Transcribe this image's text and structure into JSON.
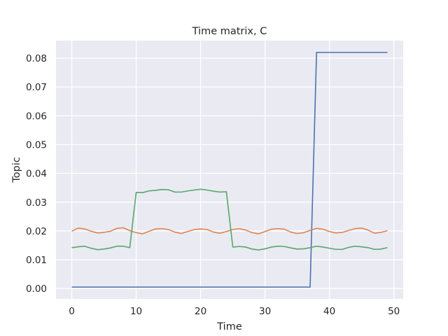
{
  "chart_data": {
    "type": "line",
    "title": "Time matrix, C",
    "xlabel": "Time",
    "ylabel": "Topic",
    "xlim": [
      -2.45,
      51.45
    ],
    "ylim": [
      -0.0036,
      0.0861
    ],
    "xticks": [
      0,
      10,
      20,
      30,
      40,
      50
    ],
    "xtick_labels": [
      "0",
      "10",
      "20",
      "30",
      "40",
      "50"
    ],
    "yticks": [
      0.0,
      0.01,
      0.02,
      0.03,
      0.04,
      0.05,
      0.06,
      0.07,
      0.08
    ],
    "ytick_labels": [
      "0.00",
      "0.01",
      "0.02",
      "0.03",
      "0.04",
      "0.05",
      "0.06",
      "0.07",
      "0.08"
    ],
    "grid": true,
    "colors": {
      "background": "#eaeaf2",
      "grid": "#ffffff",
      "series": [
        "#4c72b0",
        "#dd8452",
        "#55a868"
      ]
    },
    "x": [
      0,
      1,
      2,
      3,
      4,
      5,
      6,
      7,
      8,
      9,
      10,
      11,
      12,
      13,
      14,
      15,
      16,
      17,
      18,
      19,
      20,
      21,
      22,
      23,
      24,
      25,
      26,
      27,
      28,
      29,
      30,
      31,
      32,
      33,
      34,
      35,
      36,
      37,
      38,
      39,
      40,
      41,
      42,
      43,
      44,
      45,
      46,
      47,
      48,
      49
    ],
    "series": [
      {
        "values": [
          0.0005,
          0.0005,
          0.0005,
          0.0005,
          0.0005,
          0.0005,
          0.0005,
          0.0005,
          0.0005,
          0.0005,
          0.0005,
          0.0005,
          0.0005,
          0.0005,
          0.0005,
          0.0005,
          0.0005,
          0.0005,
          0.0005,
          0.0005,
          0.0005,
          0.0005,
          0.0005,
          0.0005,
          0.0005,
          0.0005,
          0.0005,
          0.0005,
          0.0005,
          0.0005,
          0.0005,
          0.0005,
          0.0005,
          0.0005,
          0.0005,
          0.0005,
          0.0005,
          0.0005,
          0.082,
          0.082,
          0.082,
          0.082,
          0.082,
          0.082,
          0.082,
          0.082,
          0.082,
          0.082,
          0.082,
          0.082
        ]
      },
      {
        "values": [
          0.0199,
          0.021,
          0.0207,
          0.0199,
          0.0193,
          0.0195,
          0.0199,
          0.0209,
          0.0211,
          0.0201,
          0.0194,
          0.019,
          0.0199,
          0.0207,
          0.0208,
          0.0205,
          0.0196,
          0.0191,
          0.0198,
          0.0205,
          0.0207,
          0.0205,
          0.0196,
          0.0192,
          0.0198,
          0.0205,
          0.0208,
          0.0203,
          0.0194,
          0.019,
          0.0198,
          0.0206,
          0.0208,
          0.0206,
          0.0196,
          0.0191,
          0.0194,
          0.0202,
          0.0209,
          0.0206,
          0.0198,
          0.0193,
          0.0195,
          0.0202,
          0.0208,
          0.021,
          0.0203,
          0.0192,
          0.0195,
          0.0201
        ]
      },
      {
        "values": [
          0.0142,
          0.0145,
          0.0147,
          0.014,
          0.0135,
          0.0137,
          0.0141,
          0.0147,
          0.0147,
          0.0142,
          0.0334,
          0.0333,
          0.0339,
          0.0341,
          0.0344,
          0.0343,
          0.0335,
          0.0335,
          0.0339,
          0.0342,
          0.0345,
          0.0342,
          0.0338,
          0.0335,
          0.0336,
          0.0144,
          0.0146,
          0.0144,
          0.0137,
          0.0134,
          0.0138,
          0.0144,
          0.0147,
          0.0146,
          0.0141,
          0.0137,
          0.0138,
          0.0142,
          0.0147,
          0.0144,
          0.014,
          0.0136,
          0.0136,
          0.0143,
          0.0147,
          0.0145,
          0.0142,
          0.0136,
          0.0137,
          0.0142
        ]
      }
    ]
  }
}
